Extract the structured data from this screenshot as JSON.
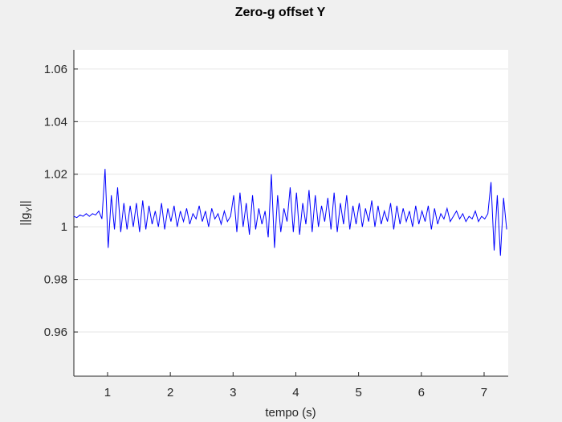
{
  "chart_data": {
    "type": "line",
    "title": "Zero-g offset Y",
    "xlabel": "tempo (s)",
    "ylabel": [
      "||g",
      "Y",
      "||"
    ],
    "xlim": [
      0.463,
      7.384
    ],
    "ylim": [
      0.9432,
      1.0673
    ],
    "xticks": [
      1,
      2,
      3,
      4,
      5,
      6,
      7
    ],
    "yticks": [
      0.96,
      0.98,
      1,
      1.02,
      1.04,
      1.06
    ],
    "grid": true,
    "series": [
      {
        "color": "#0000ff",
        "x": [
          0.46,
          0.51,
          0.56,
          0.61,
          0.66,
          0.71,
          0.76,
          0.81,
          0.86,
          0.91,
          0.96,
          1.01,
          1.06,
          1.11,
          1.16,
          1.21,
          1.26,
          1.31,
          1.36,
          1.41,
          1.46,
          1.51,
          1.56,
          1.61,
          1.66,
          1.71,
          1.76,
          1.81,
          1.86,
          1.91,
          1.96,
          2.01,
          2.06,
          2.11,
          2.16,
          2.21,
          2.26,
          2.31,
          2.36,
          2.41,
          2.46,
          2.51,
          2.56,
          2.61,
          2.66,
          2.71,
          2.76,
          2.81,
          2.86,
          2.91,
          2.96,
          3.01,
          3.06,
          3.11,
          3.16,
          3.21,
          3.26,
          3.31,
          3.36,
          3.41,
          3.46,
          3.51,
          3.56,
          3.61,
          3.66,
          3.71,
          3.76,
          3.81,
          3.86,
          3.91,
          3.96,
          4.01,
          4.06,
          4.11,
          4.16,
          4.21,
          4.26,
          4.31,
          4.36,
          4.41,
          4.46,
          4.51,
          4.56,
          4.61,
          4.66,
          4.71,
          4.76,
          4.81,
          4.86,
          4.91,
          4.96,
          5.01,
          5.06,
          5.11,
          5.16,
          5.21,
          5.26,
          5.31,
          5.36,
          5.41,
          5.46,
          5.51,
          5.56,
          5.61,
          5.66,
          5.71,
          5.76,
          5.81,
          5.86,
          5.91,
          5.96,
          6.01,
          6.06,
          6.11,
          6.16,
          6.21,
          6.26,
          6.31,
          6.36,
          6.41,
          6.46,
          6.51,
          6.56,
          6.61,
          6.66,
          6.71,
          6.76,
          6.81,
          6.86,
          6.91,
          6.96,
          7.01,
          7.06,
          7.11,
          7.16,
          7.21,
          7.26,
          7.31,
          7.36
        ],
        "values": [
          1.004,
          1.0035,
          1.0045,
          1.004,
          1.005,
          1.004,
          1.005,
          1.0045,
          1.006,
          1.003,
          1.022,
          0.992,
          1.012,
          0.999,
          1.015,
          0.998,
          1.009,
          0.999,
          1.008,
          1.0,
          1.009,
          0.998,
          1.01,
          0.999,
          1.008,
          1.001,
          1.006,
          1.0,
          1.009,
          0.999,
          1.007,
          1.002,
          1.008,
          1.0,
          1.006,
          1.002,
          1.007,
          1.001,
          1.005,
          1.003,
          1.008,
          1.002,
          1.006,
          1.0,
          1.007,
          1.003,
          1.005,
          1.001,
          1.006,
          1.002,
          1.004,
          1.012,
          0.998,
          1.013,
          1.0,
          1.009,
          0.997,
          1.012,
          0.999,
          1.007,
          1.001,
          1.006,
          0.996,
          1.02,
          0.992,
          1.012,
          0.998,
          1.007,
          1.002,
          1.015,
          0.998,
          1.013,
          0.997,
          1.009,
          1.001,
          1.014,
          0.998,
          1.012,
          1.0,
          1.008,
          1.002,
          1.011,
          0.999,
          1.013,
          0.998,
          1.009,
          1.001,
          1.012,
          0.999,
          1.008,
          1.001,
          1.009,
          1.0,
          1.007,
          1.002,
          1.01,
          1.0,
          1.008,
          1.001,
          1.006,
          1.002,
          1.009,
          0.999,
          1.008,
          1.001,
          1.007,
          1.002,
          1.006,
          1.0,
          1.008,
          1.001,
          1.006,
          1.002,
          1.008,
          0.999,
          1.007,
          1.001,
          1.005,
          1.003,
          1.007,
          1.002,
          1.004,
          1.006,
          1.003,
          1.005,
          1.002,
          1.004,
          1.003,
          1.006,
          1.002,
          1.004,
          1.003,
          1.005,
          1.017,
          0.991,
          1.012,
          0.989,
          1.011,
          0.999
        ]
      }
    ]
  }
}
